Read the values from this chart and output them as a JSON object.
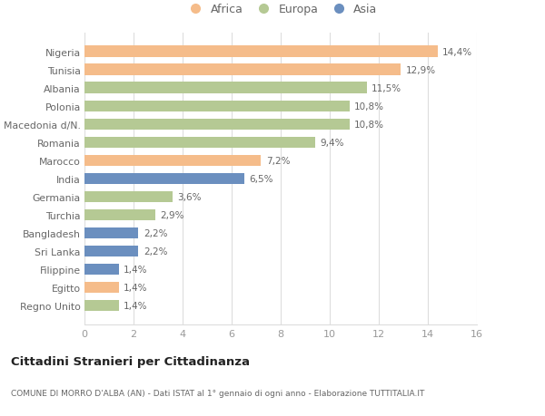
{
  "countries": [
    "Nigeria",
    "Tunisia",
    "Albania",
    "Polonia",
    "Macedonia d/N.",
    "Romania",
    "Marocco",
    "India",
    "Germania",
    "Turchia",
    "Bangladesh",
    "Sri Lanka",
    "Filippine",
    "Egitto",
    "Regno Unito"
  ],
  "values": [
    14.4,
    12.9,
    11.5,
    10.8,
    10.8,
    9.4,
    7.2,
    6.5,
    3.6,
    2.9,
    2.2,
    2.2,
    1.4,
    1.4,
    1.4
  ],
  "continents": [
    "Africa",
    "Africa",
    "Europa",
    "Europa",
    "Europa",
    "Europa",
    "Africa",
    "Asia",
    "Europa",
    "Europa",
    "Asia",
    "Asia",
    "Asia",
    "Africa",
    "Europa"
  ],
  "colors": {
    "Africa": "#F5BC8A",
    "Europa": "#B5C994",
    "Asia": "#6B8FBF"
  },
  "xlim": [
    0,
    16
  ],
  "xticks": [
    0,
    2,
    4,
    6,
    8,
    10,
    12,
    14,
    16
  ],
  "title": "Cittadini Stranieri per Cittadinanza",
  "subtitle": "COMUNE DI MORRO D'ALBA (AN) - Dati ISTAT al 1° gennaio di ogni anno - Elaborazione TUTTITALIA.IT",
  "bg_color": "#ffffff",
  "grid_color": "#dddddd",
  "label_color": "#666666",
  "tick_color": "#999999",
  "legend_order": [
    "Africa",
    "Europa",
    "Asia"
  ]
}
